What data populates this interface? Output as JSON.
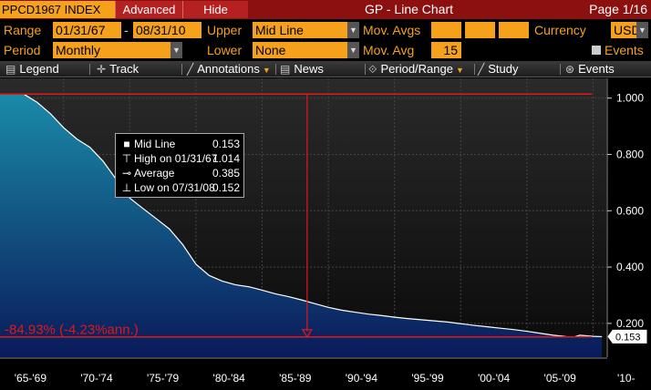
{
  "header": {
    "ticker": "PPCD1967 INDEX",
    "advanced_label": "Advanced",
    "hide_label": "Hide",
    "window_title": "GP - Line Chart",
    "page": "Page 1/16"
  },
  "settings": {
    "range_label": "Range",
    "range_start": "01/31/67",
    "range_dash": "-",
    "range_end": "08/31/10",
    "upper_label": "Upper",
    "upper_value": "Mid Line",
    "mov_avgs_label": "Mov. Avgs",
    "currency_label": "Currency",
    "currency_value": "USD",
    "period_label": "Period",
    "period_value": "Monthly",
    "lower_label": "Lower",
    "lower_value": "None",
    "mov_avg_label": "Mov. Avg",
    "mov_avg_value": "15",
    "events_check_label": "Events"
  },
  "toolbar": {
    "legend": "Legend",
    "track": "Track",
    "annotations": "Annotations",
    "news": "News",
    "period_range": "Period/Range",
    "study": "Study",
    "events": "Events"
  },
  "legend_box": {
    "mid_line_label": "Mid Line",
    "mid_line_value": "0.153",
    "high_label": "High on 01/31/67",
    "high_value": "1.014",
    "average_label": "Average",
    "average_value": "0.385",
    "low_label": "Low on 07/31/08",
    "low_value": "0.152"
  },
  "chart_data": {
    "type": "area",
    "x_tick_labels": [
      "'65-'69",
      "'70-'74",
      "'75-'79",
      "'80-'84",
      "'85-'89",
      "'90-'94",
      "'95-'99",
      "'00-'04",
      "'05-'09",
      "'10-"
    ],
    "y_tick_labels": [
      "0.200",
      "0.400",
      "0.600",
      "0.800",
      "1.000"
    ],
    "ylim": [
      0.08,
      1.07
    ],
    "xlim": [
      1965.2,
      2011.0
    ],
    "series": [
      {
        "name": "Mid Line",
        "x": [
          1967.0,
          1968.0,
          1969.0,
          1970.0,
          1971.0,
          1972.0,
          1973.0,
          1974.0,
          1975.0,
          1976.0,
          1977.0,
          1978.0,
          1979.0,
          1980.0,
          1981.0,
          1982.0,
          1983.0,
          1984.0,
          1985.0,
          1986.0,
          1987.0,
          1988.0,
          1989.0,
          1990.0,
          1991.0,
          1992.0,
          1993.0,
          1994.0,
          1995.0,
          1996.0,
          1997.0,
          1998.0,
          1999.0,
          2000.0,
          2001.0,
          2002.0,
          2003.0,
          2004.0,
          2005.0,
          2006.0,
          2007.0,
          2008.0,
          2008.6,
          2009.0,
          2010.0,
          2010.67
        ],
        "y": [
          1.014,
          0.985,
          0.945,
          0.895,
          0.855,
          0.825,
          0.775,
          0.71,
          0.645,
          0.608,
          0.572,
          0.535,
          0.48,
          0.41,
          0.37,
          0.35,
          0.337,
          0.33,
          0.318,
          0.305,
          0.295,
          0.283,
          0.27,
          0.257,
          0.247,
          0.24,
          0.233,
          0.228,
          0.222,
          0.217,
          0.213,
          0.209,
          0.205,
          0.199,
          0.193,
          0.188,
          0.183,
          0.178,
          0.172,
          0.165,
          0.158,
          0.153,
          0.152,
          0.158,
          0.154,
          0.153
        ]
      }
    ],
    "last_value_label": "0.153",
    "change_annotation": "-84.93% (-4.23%ann.)",
    "high_line_value": 1.014,
    "low_line_value": 0.152,
    "arrow_x": 1988.4,
    "grid": true
  },
  "colors": {
    "accent_orange": "#f5a11c",
    "title_bar": "#8c1010",
    "annotation_red": "#e01818",
    "area_top": "#1a8aa8",
    "area_bottom": "#0a1a5a"
  }
}
